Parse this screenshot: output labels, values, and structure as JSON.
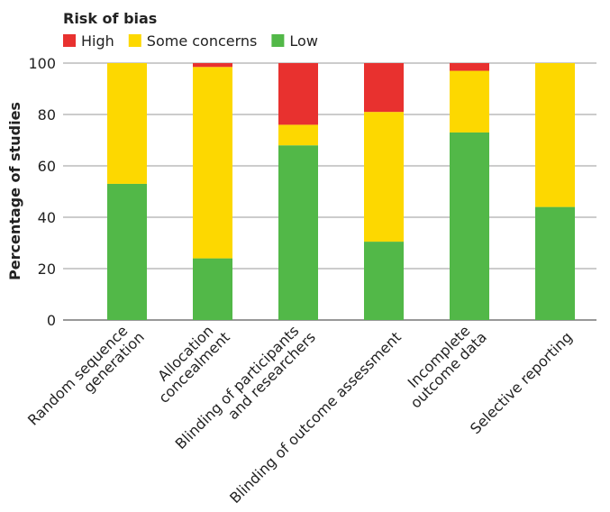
{
  "chart_data": {
    "type": "stacked_bar",
    "legend_title": "Risk of bias",
    "y_label": "Percentage of studies",
    "categories": [
      "Random sequence\ngeneration",
      "Allocation\nconcealment",
      "Blinding of participants\nand researchers",
      "Blinding of outcome assessment",
      "Incomplete\noutcome data",
      "Selective reporting"
    ],
    "series": [
      {
        "name": "High",
        "color": "#e8312f",
        "values": [
          0,
          1.5,
          24,
          19,
          3,
          0
        ]
      },
      {
        "name": "Some concerns",
        "color": "#fdd800",
        "values": [
          47,
          74.5,
          8,
          50.5,
          24,
          56
        ]
      },
      {
        "name": "Low",
        "color": "#52b848",
        "values": [
          53,
          24,
          68,
          30.5,
          73,
          44
        ]
      }
    ],
    "ylim": [
      0,
      100
    ],
    "yticks": [
      0,
      20,
      40,
      60,
      80,
      100
    ],
    "grid": true
  }
}
